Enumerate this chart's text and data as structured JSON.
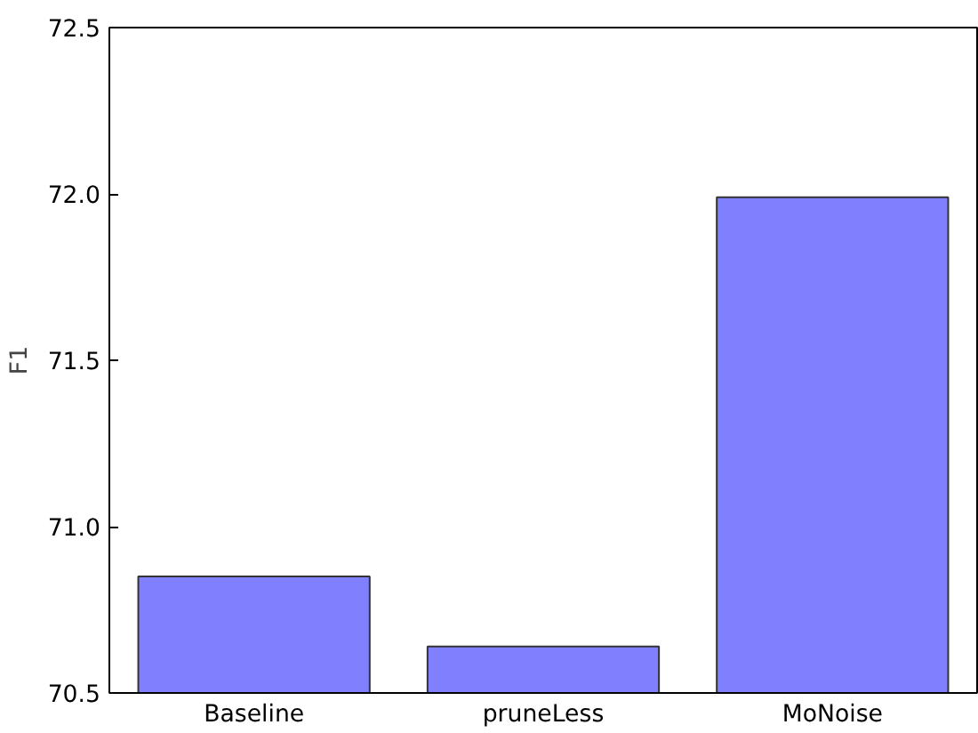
{
  "chart_data": {
    "type": "bar",
    "ylabel": "F1",
    "categories": [
      "Baseline",
      "pruneLess",
      "MoNoise"
    ],
    "values": [
      70.85,
      70.64,
      71.99
    ],
    "color": "#8080ff",
    "ylim": [
      70.5,
      72.5
    ],
    "yticks": [
      70.5,
      {
        "value": 71,
        "label": "71.0"
      },
      71.5,
      {
        "value": 72,
        "label": "72.0"
      },
      72.5
    ],
    "grid": false
  }
}
